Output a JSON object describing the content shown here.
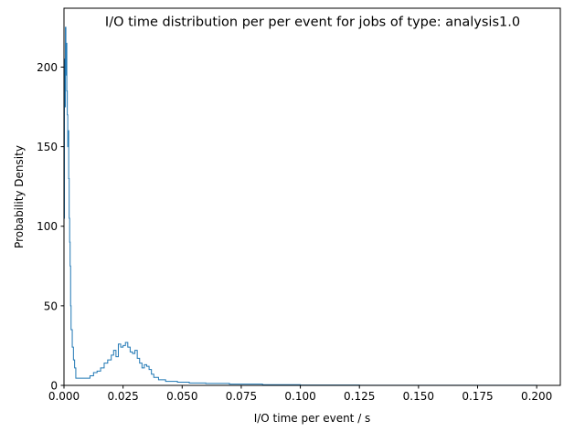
{
  "chart_data": {
    "type": "line",
    "title": "I/O time distribution per per event for jobs of type: analysis1.0",
    "xlabel": "I/O time per event / s",
    "ylabel": "Probability Density",
    "xlim": [
      0,
      0.21
    ],
    "ylim": [
      0,
      237
    ],
    "x_ticks": [
      0.0,
      0.025,
      0.05,
      0.075,
      0.1,
      0.125,
      0.15,
      0.175,
      0.2
    ],
    "x_tick_labels": [
      "0.000",
      "0.025",
      "0.050",
      "0.075",
      "0.100",
      "0.125",
      "0.150",
      "0.175",
      "0.200"
    ],
    "y_ticks": [
      0,
      50,
      100,
      150,
      200
    ],
    "y_tick_labels": [
      "0",
      "50",
      "100",
      "150",
      "200"
    ],
    "grid": false,
    "legend": "none",
    "series_color": "#1f77b4",
    "series": [
      {
        "style": "step-histogram",
        "bin_edges": [
          0,
          0.0002,
          0.0004,
          0.0006,
          0.0008,
          0.001,
          0.0012,
          0.0014,
          0.0016,
          0.0018,
          0.002,
          0.0022,
          0.0024,
          0.0026,
          0.0028,
          0.003,
          0.0035,
          0.004,
          0.0045,
          0.005,
          0.0065,
          0.008,
          0.0095,
          0.011,
          0.0125,
          0.014,
          0.0155,
          0.017,
          0.0185,
          0.02,
          0.021,
          0.022,
          0.023,
          0.024,
          0.025,
          0.026,
          0.027,
          0.028,
          0.029,
          0.03,
          0.031,
          0.032,
          0.033,
          0.034,
          0.035,
          0.036,
          0.037,
          0.038,
          0.04,
          0.043,
          0.048,
          0.053,
          0.06,
          0.07,
          0.084,
          0.1,
          0.125,
          0.15,
          0.175,
          0.2
        ],
        "densities": [
          105,
          205,
          175,
          225,
          195,
          215,
          185,
          170,
          150,
          160,
          130,
          105,
          90,
          75,
          50,
          35,
          24,
          16,
          11,
          4.5,
          4.5,
          4.5,
          4.5,
          6,
          8,
          9,
          11,
          14,
          16,
          19,
          22,
          18,
          26,
          24,
          25,
          27,
          24,
          21,
          20,
          22,
          17,
          14,
          11,
          13,
          12,
          10,
          7,
          5,
          3.5,
          2.5,
          2,
          1.5,
          1.2,
          0.8,
          0.4,
          0.2,
          0.1,
          0.1,
          0.1
        ]
      }
    ]
  }
}
